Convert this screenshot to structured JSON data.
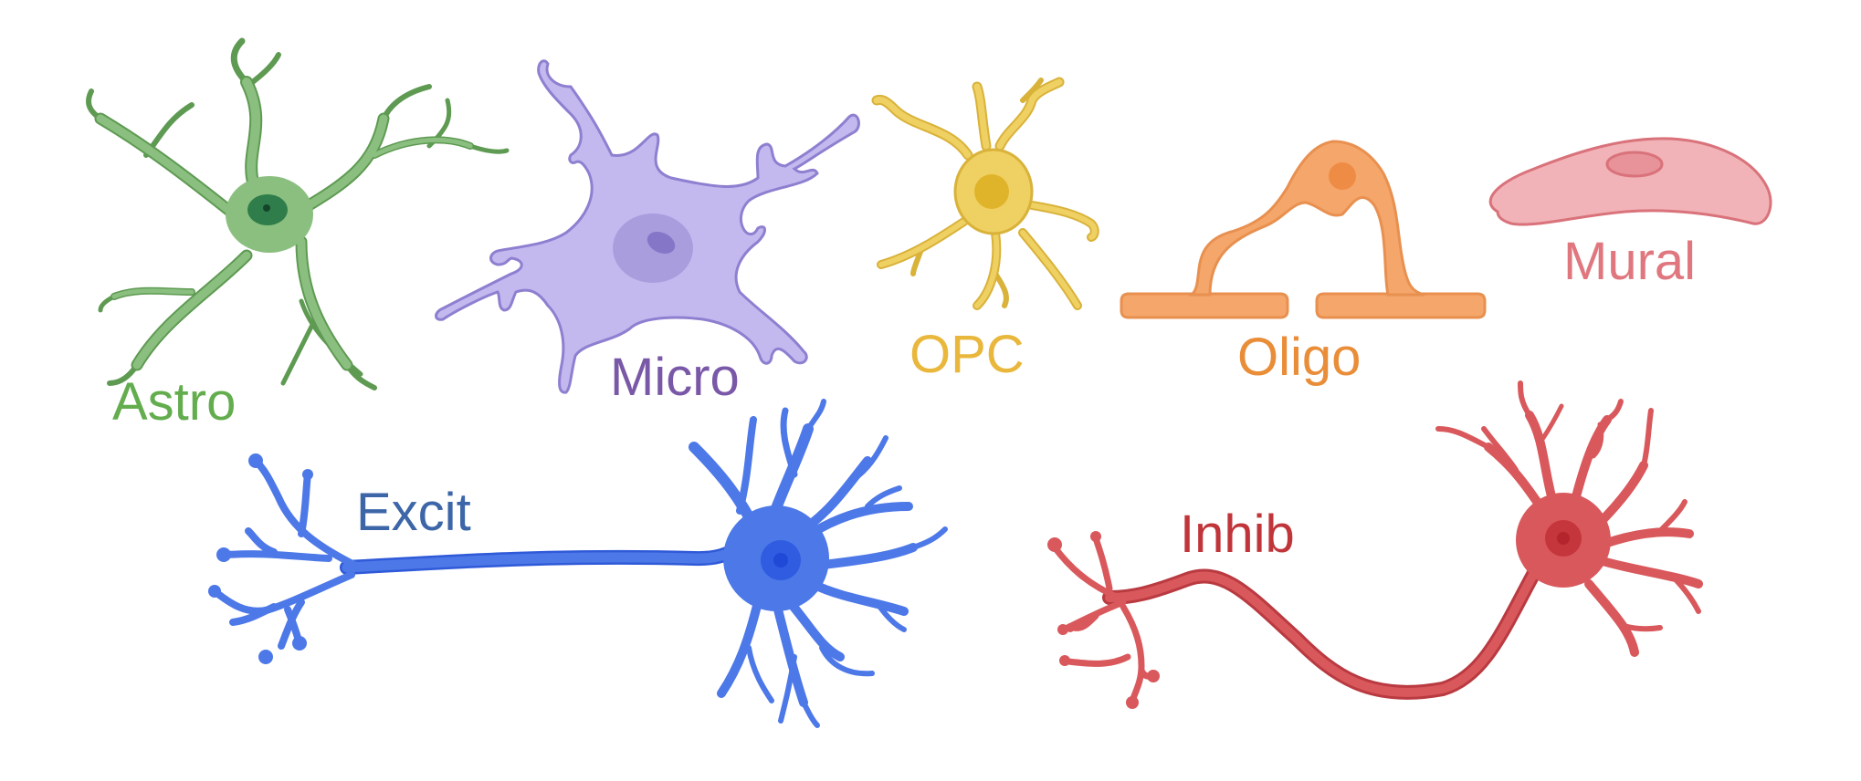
{
  "cells": [
    {
      "key": "astro",
      "label": "Astro",
      "color": "#8bbf80",
      "label_color": "#63ad4e",
      "stroke": "#5e9a52",
      "nucleus": "#2f7d4a"
    },
    {
      "key": "micro",
      "label": "Micro",
      "color": "#c3b9ef",
      "label_color": "#7a58a8",
      "stroke": "#8e7fd0",
      "nucleus": "#a698da"
    },
    {
      "key": "opc",
      "label": "OPC",
      "color": "#efd062",
      "label_color": "#e9b73c",
      "stroke": "#d9b23a",
      "nucleus": "#e0b42a"
    },
    {
      "key": "oligo",
      "label": "Oligo",
      "color": "#f5a66a",
      "label_color": "#e98d38",
      "stroke": "#e89050",
      "nucleus": "#ee8c46"
    },
    {
      "key": "mural",
      "label": "Mural",
      "color": "#f1b3b7",
      "label_color": "#e0777f",
      "stroke": "#d9727a",
      "nucleus": "#e89399"
    },
    {
      "key": "excit",
      "label": "Excit",
      "color": "#4d78e8",
      "label_color": "#3d66a8",
      "stroke": "#2f5ad8",
      "nucleus": "#1f49d6"
    },
    {
      "key": "inhib",
      "label": "Inhib",
      "color": "#d9585c",
      "label_color": "#c0353a",
      "stroke": "#b93a40",
      "nucleus": "#b3242c"
    }
  ]
}
